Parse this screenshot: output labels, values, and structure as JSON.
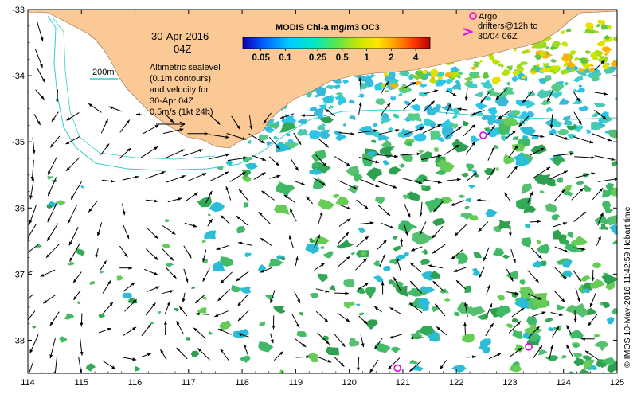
{
  "map": {
    "date_line1": "30-Apr-2016",
    "date_line2": "04Z",
    "colorbar_title": "MODIS Chl-a mg/m3 OC3",
    "colorbar_ticks": [
      "0.05",
      "0.1",
      "0.25",
      "0.5",
      "1",
      "2",
      "4"
    ],
    "contour_label": "200m",
    "description_lines": [
      "Altimetric sealevel",
      "(0.1m contours)",
      "and velocity for",
      "30-Apr 04Z",
      "0.5m/s (1kt 24h)"
    ],
    "argo_lines": [
      "Argo",
      "drifters@12h to",
      "30/04 06Z"
    ],
    "credit": "© IMOS 10-May-2016 11:42:59 Hobart time",
    "colors": {
      "land": "#fbc995",
      "contour": "#33cccc",
      "argo": "#e600e6",
      "ocean": "#ffffff"
    }
  },
  "chart_data": {
    "type": "map",
    "x_axis": {
      "label": "",
      "range": [
        114,
        125
      ],
      "ticks": [
        114,
        115,
        116,
        117,
        118,
        119,
        120,
        121,
        122,
        123,
        124,
        125
      ]
    },
    "y_axis": {
      "label": "",
      "range": [
        -38.5,
        -33
      ],
      "ticks": [
        -33,
        -34,
        -35,
        -36,
        -37,
        -38
      ]
    },
    "argo_floats": [
      {
        "lon": 122.3,
        "lat": -33.08,
        "role": "legend"
      },
      {
        "lon": 122.5,
        "lat": -34.9
      },
      {
        "lon": 123.35,
        "lat": -38.1
      },
      {
        "lon": 120.9,
        "lat": -38.42
      }
    ],
    "chlorophyll_colorscale": {
      "scale": "log",
      "min": 0.03,
      "max": 6,
      "stops": [
        "#0d00b3",
        "#0066ff",
        "#00ccff",
        "#00e6c8",
        "#5be64a",
        "#c9e600",
        "#ffe600",
        "#ff9900",
        "#ff3300",
        "#b30000"
      ]
    }
  }
}
